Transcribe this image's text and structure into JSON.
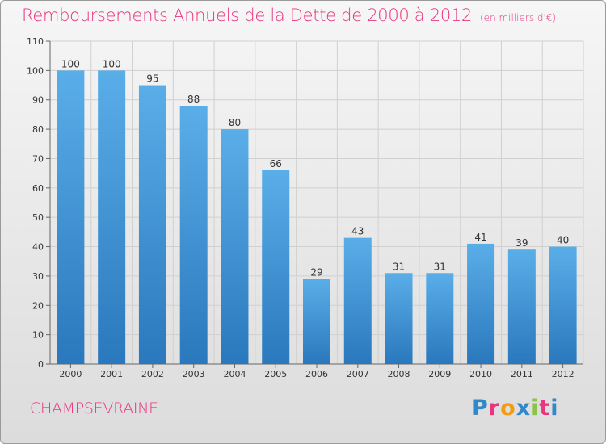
{
  "title": "Remboursements Annuels de la Dette de 2000 à 2012",
  "subtitle": "(en milliers d'€)",
  "commune": "CHAMPSEVRAINE",
  "logo": {
    "letters": [
      "P",
      "r",
      "o",
      "x",
      "i",
      "t",
      "i"
    ],
    "colors": [
      "#2f88c9",
      "#e8357e",
      "#f39c12",
      "#2f88c9",
      "#8bc34a",
      "#e8357e",
      "#2f88c9"
    ]
  },
  "chart_data": {
    "type": "bar",
    "title": "Remboursements Annuels de la Dette de 2000 à 2012",
    "xlabel": "",
    "ylabel": "",
    "categories": [
      "2000",
      "2001",
      "2002",
      "2003",
      "2004",
      "2005",
      "2006",
      "2007",
      "2008",
      "2009",
      "2010",
      "2011",
      "2012"
    ],
    "values": [
      100,
      100,
      95,
      88,
      80,
      66,
      29,
      43,
      31,
      31,
      41,
      39,
      40
    ],
    "ylim": [
      0,
      110
    ],
    "yticks": [
      0,
      10,
      20,
      30,
      40,
      50,
      60,
      70,
      80,
      90,
      100,
      110
    ],
    "grid": true,
    "bar_color": "#4da3e2"
  }
}
